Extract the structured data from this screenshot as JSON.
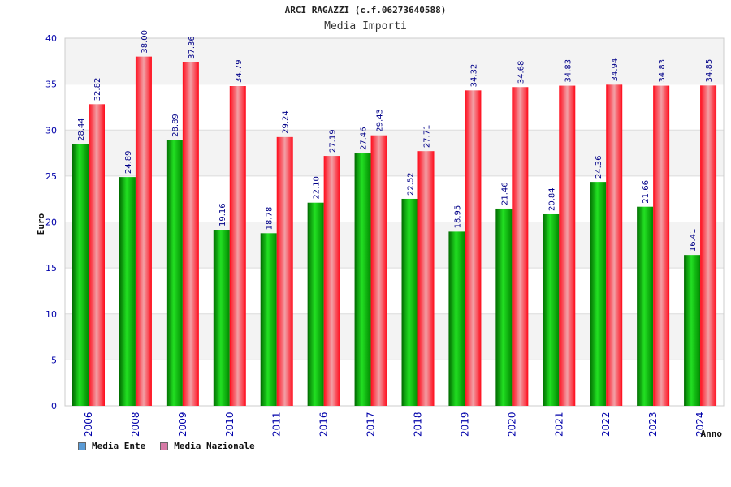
{
  "chart_data": {
    "type": "bar",
    "title": "ARCI RAGAZZI (c.f.06273640588)",
    "subtitle": "Media Importi",
    "xlabel": "Anno",
    "ylabel": "Euro",
    "ylim": [
      0,
      40
    ],
    "yticks": [
      0,
      5,
      10,
      15,
      20,
      25,
      30,
      35,
      40
    ],
    "grid": true,
    "legend_position": "bottom-left",
    "categories": [
      "2006",
      "2008",
      "2009",
      "2010",
      "2011",
      "2016",
      "2017",
      "2018",
      "2019",
      "2020",
      "2021",
      "2022",
      "2023",
      "2024"
    ],
    "series": [
      {
        "name": "Media Ente",
        "values": [
          28.44,
          24.89,
          28.89,
          19.16,
          18.78,
          22.1,
          27.46,
          22.52,
          18.95,
          21.46,
          20.84,
          24.36,
          21.66,
          16.41
        ],
        "labels": [
          "28.44",
          "24.89",
          "28.89",
          "19.16",
          "18.78",
          "22.10",
          "27.46",
          "22.52",
          "18.95",
          "21.46",
          "20.84",
          "24.36",
          "21.66",
          "16.41"
        ],
        "color": "#00b000",
        "legend_color": "#5b9bd5"
      },
      {
        "name": "Media Nazionale",
        "values": [
          32.82,
          38.0,
          37.36,
          34.79,
          29.24,
          27.19,
          29.43,
          27.71,
          34.32,
          34.68,
          34.83,
          34.94,
          34.83,
          34.85
        ],
        "labels": [
          "32.82",
          "38.00",
          "37.36",
          "34.79",
          "29.24",
          "27.19",
          "29.43",
          "27.71",
          "34.32",
          "34.68",
          "34.83",
          "34.94",
          "34.83",
          "34.85"
        ],
        "color": "#ee1122",
        "legend_color": "#d67aa6"
      }
    ]
  }
}
